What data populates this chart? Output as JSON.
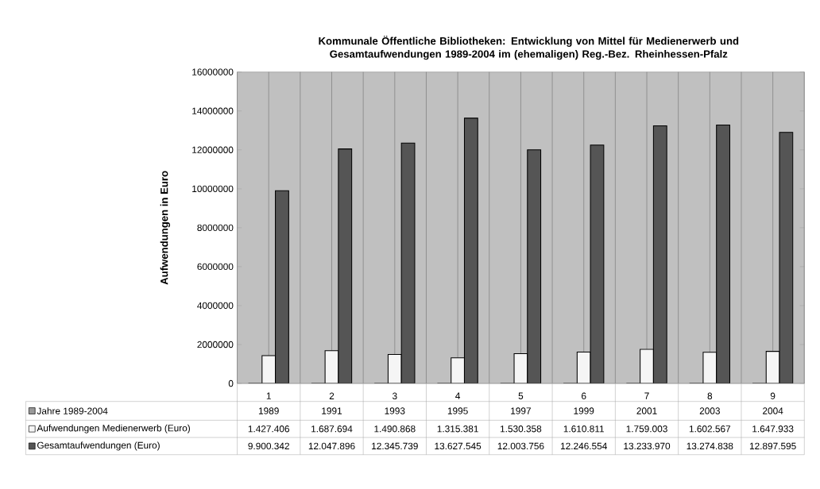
{
  "chart_data": {
    "type": "bar",
    "title": "Kommunale Öffentliche Bibliotheken: Entwicklung von Mittel für Medienerwerb und Gesamtaufwendungen 1989-2004 im (ehemaligen) Reg.-Bez. Rheinhessen-Pfalz",
    "ylabel": "Aufwendungen in Euro",
    "categories": [
      "1",
      "2",
      "3",
      "4",
      "5",
      "6",
      "7",
      "8",
      "9"
    ],
    "series": [
      {
        "name": "Jahre 1989-2004",
        "color": "#999999",
        "values": [
          1989,
          1991,
          1993,
          1995,
          1997,
          1999,
          2001,
          2003,
          2004
        ],
        "value_labels": [
          "1989",
          "1991",
          "1993",
          "1995",
          "1997",
          "1999",
          "2001",
          "2003",
          "2004"
        ]
      },
      {
        "name": "Aufwendungen Medienerwerb (Euro)",
        "color": "#f5f5f5",
        "values": [
          1427406,
          1687694,
          1490868,
          1315381,
          1530358,
          1610811,
          1759003,
          1602567,
          1647933
        ],
        "value_labels": [
          "1.427.406",
          "1.687.694",
          "1.490.868",
          "1.315.381",
          "1.530.358",
          "1.610.811",
          "1.759.003",
          "1.602.567",
          "1.647.933"
        ]
      },
      {
        "name": "Gesamtaufwendungen (Euro)",
        "color": "#555555",
        "values": [
          9900342,
          12047896,
          12345739,
          13627545,
          12003756,
          12246554,
          13233970,
          13274838,
          12897595
        ],
        "value_labels": [
          "9.900.342",
          "12.047.896",
          "12.345.739",
          "13.627.545",
          "12.003.756",
          "12.246.554",
          "13.233.970",
          "13.274.838",
          "12.897.595"
        ]
      }
    ],
    "ylim": [
      0,
      16000000
    ],
    "yticks": [
      0,
      2000000,
      4000000,
      6000000,
      8000000,
      10000000,
      12000000,
      14000000,
      16000000
    ],
    "grid": "x",
    "legend": "bottom left"
  }
}
